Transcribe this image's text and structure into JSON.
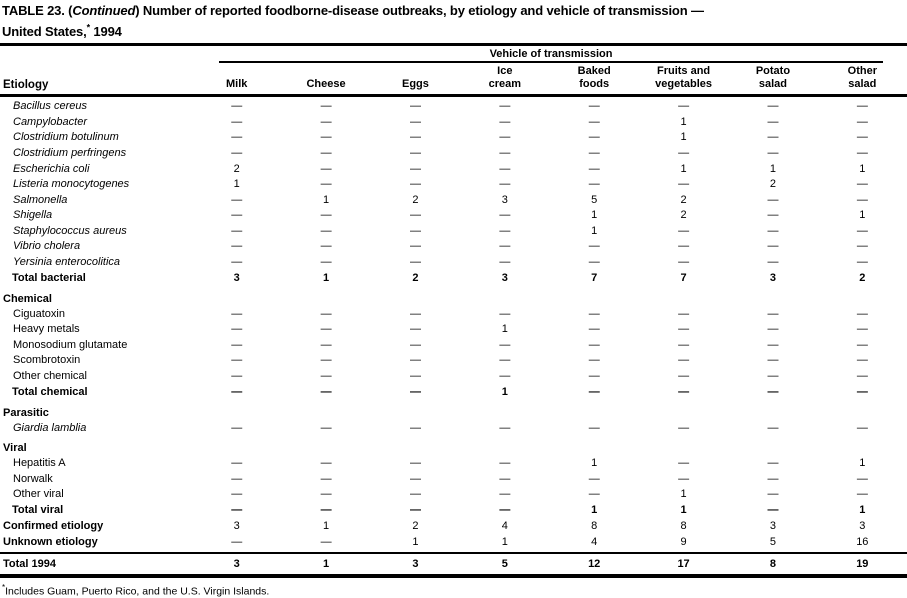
{
  "title": {
    "line1_pre": "TABLE 23. (",
    "line1_italic": "Continued",
    "line1_post": ") Number of reported foodborne-disease outbreaks, by etiology and vehicle of transmission —",
    "line2_pre": "United States,",
    "line2_sup": "*",
    "line2_post": " 1994"
  },
  "table": {
    "spanner_header": "Vehicle of transmission",
    "etiology_header": "Etiology",
    "columns": [
      "Milk",
      "Cheese",
      "Eggs",
      "Ice\ncream",
      "Baked\nfoods",
      "Fruits and\nvegetables",
      "Potato\nsalad",
      "Other\nsalad"
    ],
    "rows": [
      {
        "label": "Bacillus cereus",
        "style": "species",
        "values": [
          "—",
          "—",
          "—",
          "—",
          "—",
          "—",
          "—",
          "—"
        ]
      },
      {
        "label": "Campylobacter",
        "style": "species",
        "values": [
          "—",
          "—",
          "—",
          "—",
          "—",
          "1",
          "—",
          "—"
        ]
      },
      {
        "label": "Clostridium botulinum",
        "style": "species",
        "values": [
          "—",
          "—",
          "—",
          "—",
          "—",
          "1",
          "—",
          "—"
        ]
      },
      {
        "label": "Clostridium perfringens",
        "style": "species",
        "values": [
          "—",
          "—",
          "—",
          "—",
          "—",
          "—",
          "—",
          "—"
        ]
      },
      {
        "label": "Escherichia coli",
        "style": "species",
        "values": [
          "2",
          "—",
          "—",
          "—",
          "—",
          "1",
          "1",
          "1"
        ]
      },
      {
        "label": "Listeria monocytogenes",
        "style": "species",
        "values": [
          "1",
          "—",
          "—",
          "—",
          "—",
          "—",
          "2",
          "—"
        ]
      },
      {
        "label": "Salmonella",
        "style": "species",
        "values": [
          "—",
          "1",
          "2",
          "3",
          "5",
          "2",
          "—",
          "—"
        ]
      },
      {
        "label": "Shigella",
        "style": "species",
        "values": [
          "—",
          "—",
          "—",
          "—",
          "1",
          "2",
          "—",
          "1"
        ]
      },
      {
        "label": "Staphylococcus aureus",
        "style": "species",
        "values": [
          "—",
          "—",
          "—",
          "—",
          "1",
          "—",
          "—",
          "—"
        ]
      },
      {
        "label": "Vibrio cholera",
        "style": "species",
        "values": [
          "—",
          "—",
          "—",
          "—",
          "—",
          "—",
          "—",
          "—"
        ]
      },
      {
        "label": "Yersinia enterocolitica",
        "style": "species",
        "values": [
          "—",
          "—",
          "—",
          "—",
          "—",
          "—",
          "—",
          "—"
        ]
      },
      {
        "label": "Total bacterial",
        "style": "total",
        "values": [
          "3",
          "1",
          "2",
          "3",
          "7",
          "7",
          "3",
          "2"
        ]
      },
      {
        "label": "Chemical",
        "style": "section",
        "values": []
      },
      {
        "label": "Ciguatoxin",
        "style": "item",
        "values": [
          "—",
          "—",
          "—",
          "—",
          "—",
          "—",
          "—",
          "—"
        ]
      },
      {
        "label": "Heavy metals",
        "style": "item",
        "values": [
          "—",
          "—",
          "—",
          "1",
          "—",
          "—",
          "—",
          "—"
        ]
      },
      {
        "label": "Monosodium glutamate",
        "style": "item",
        "values": [
          "—",
          "—",
          "—",
          "—",
          "—",
          "—",
          "—",
          "—"
        ]
      },
      {
        "label": "Scombrotoxin",
        "style": "item",
        "values": [
          "—",
          "—",
          "—",
          "—",
          "—",
          "—",
          "—",
          "—"
        ]
      },
      {
        "label": "Other chemical",
        "style": "item",
        "values": [
          "—",
          "—",
          "—",
          "—",
          "—",
          "—",
          "—",
          "—"
        ]
      },
      {
        "label": "Total chemical",
        "style": "total",
        "values": [
          "—",
          "—",
          "—",
          "1",
          "—",
          "—",
          "—",
          "—"
        ]
      },
      {
        "label": "Parasitic",
        "style": "section",
        "values": []
      },
      {
        "label": "Giardia lamblia",
        "style": "species",
        "values": [
          "—",
          "—",
          "—",
          "—",
          "—",
          "—",
          "—",
          "—"
        ]
      },
      {
        "label": "Viral",
        "style": "section",
        "values": []
      },
      {
        "label": "Hepatitis A",
        "style": "item",
        "values": [
          "—",
          "—",
          "—",
          "—",
          "1",
          "—",
          "—",
          "1"
        ]
      },
      {
        "label": "Norwalk",
        "style": "item",
        "values": [
          "—",
          "—",
          "—",
          "—",
          "—",
          "—",
          "—",
          "—"
        ]
      },
      {
        "label": "Other viral",
        "style": "item",
        "values": [
          "—",
          "—",
          "—",
          "—",
          "—",
          "1",
          "—",
          "—"
        ]
      },
      {
        "label": "Total viral",
        "style": "total",
        "values": [
          "—",
          "—",
          "—",
          "—",
          "1",
          "1",
          "—",
          "1"
        ]
      },
      {
        "label": "Confirmed etiology",
        "style": "summary",
        "values": [
          "3",
          "1",
          "2",
          "4",
          "8",
          "8",
          "3",
          "3"
        ]
      },
      {
        "label": "Unknown etiology",
        "style": "summary",
        "values": [
          "—",
          "—",
          "1",
          "1",
          "4",
          "9",
          "5",
          "16"
        ]
      },
      {
        "label": "Total 1994",
        "style": "grand",
        "values": [
          "3",
          "1",
          "3",
          "5",
          "12",
          "17",
          "8",
          "19"
        ]
      }
    ]
  },
  "footnote": {
    "marker": "*",
    "text": "Includes Guam, Puerto Rico, and the U.S. Virgin Islands."
  }
}
